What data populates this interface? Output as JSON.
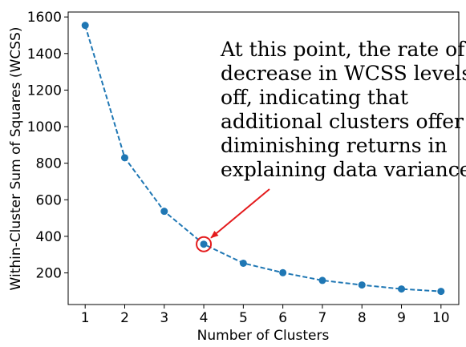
{
  "chart_data": {
    "type": "line",
    "x": [
      1,
      2,
      3,
      4,
      5,
      6,
      7,
      8,
      9,
      10
    ],
    "series": [
      {
        "values": [
          1554,
          830,
          537,
          357,
          253,
          201,
          159,
          134,
          112,
          99
        ]
      }
    ],
    "xlabel": "Number of Clusters",
    "ylabel": "Within-Cluster Sum of Squares (WCSS)",
    "x_ticks": [
      1,
      2,
      3,
      4,
      5,
      6,
      7,
      8,
      9,
      10
    ],
    "y_ticks": [
      200,
      400,
      600,
      800,
      1000,
      1200,
      1400,
      1600
    ],
    "xlim": [
      0.57,
      10.45
    ],
    "ylim": [
      27,
      1627
    ],
    "grid": false,
    "line_style": "dashed",
    "marker": "circle",
    "colors": {
      "series": "#1f77b4",
      "highlight": "#e41a1c",
      "arrow": "#e41a1c"
    },
    "annotation": {
      "lines": [
        "At this point, the rate of",
        "decrease in WCSS levels",
        "off, indicating that",
        "additional clusters offer",
        "diminishing returns in",
        "explaining data variance."
      ],
      "highlight_point": {
        "x": 4,
        "y": 357
      }
    }
  }
}
